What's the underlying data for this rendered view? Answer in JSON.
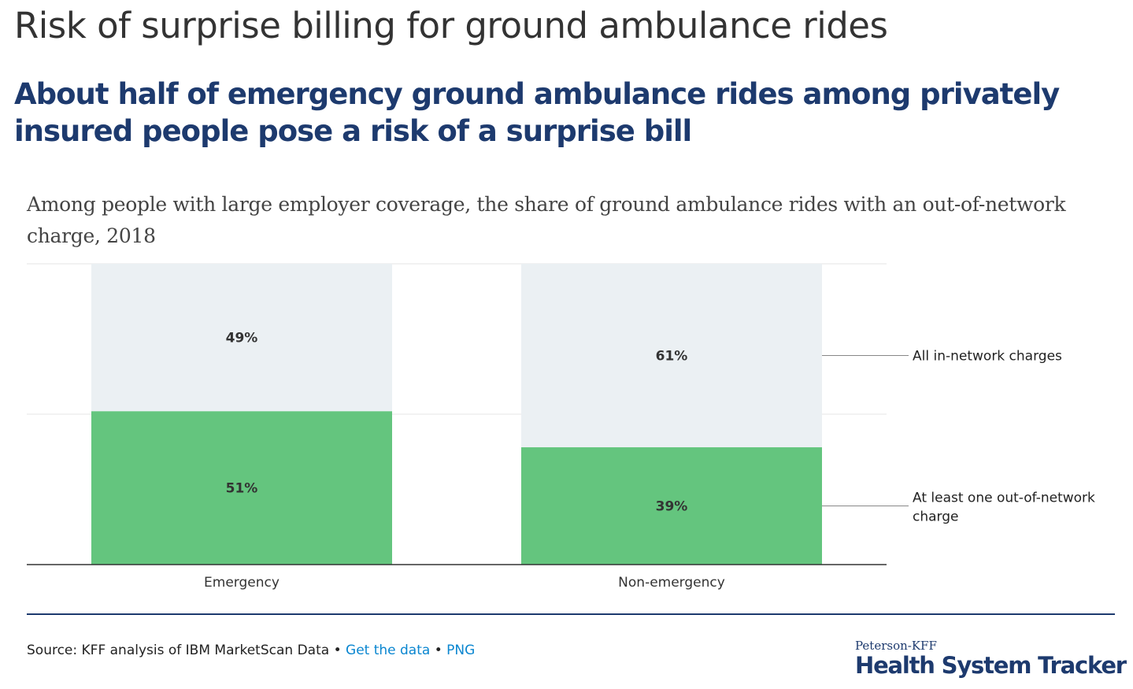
{
  "header": {
    "title": "Risk of surprise billing for ground ambulance rides",
    "subtitle": "About half of emergency ground ambulance rides among privately insured people pose a risk of a surprise bill",
    "description": "Among people with large employer coverage, the share of ground ambulance rides with an out-of-network charge, 2018"
  },
  "chart_data": {
    "type": "bar",
    "stacked": true,
    "categories": [
      "Emergency",
      "Non-emergency"
    ],
    "series": [
      {
        "name": "At least one out-of-network charge",
        "values": [
          51,
          39
        ],
        "color": "#64c57e",
        "labels": [
          "51%",
          "39%"
        ]
      },
      {
        "name": "All in-network charges",
        "values": [
          49,
          61
        ],
        "color": "#ebf0f3",
        "labels": [
          "49%",
          "61%"
        ]
      }
    ],
    "ylim": [
      0,
      100
    ],
    "grid": true,
    "legend": "right, inline labels"
  },
  "footer": {
    "source": "Source: KFF analysis of IBM MarketScan Data",
    "sep": " • ",
    "get_data": "Get the data",
    "png": "PNG",
    "logo_top": "Peterson-KFF",
    "logo_main": "Health System Tracker"
  }
}
